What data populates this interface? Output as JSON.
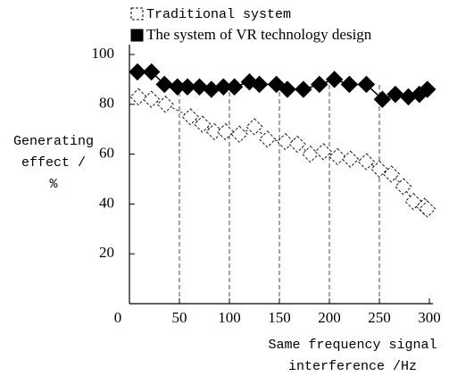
{
  "chart_data": {
    "type": "line",
    "legend": "top",
    "ylabel": [
      "Generating",
      "effect /",
      "%"
    ],
    "xlabel": [
      "Same frequency signal",
      "interference /Hz"
    ],
    "xlim": [
      0,
      300
    ],
    "xticks": [
      0,
      50,
      100,
      150,
      200,
      250,
      300
    ],
    "ylim": [
      0,
      100
    ],
    "yticks": [
      20,
      40,
      60,
      80,
      100
    ],
    "grid": true,
    "series": [
      {
        "name": "Traditional system",
        "color": "#000000",
        "marker": "hollow",
        "x": [
          9,
          22,
          36,
          61,
          73,
          85,
          96,
          110,
          125,
          138,
          156,
          168,
          181,
          194,
          208,
          221,
          237,
          250,
          262,
          274,
          284,
          295,
          298
        ],
        "values": [
          83,
          82,
          80,
          75,
          72,
          69,
          69,
          68,
          71,
          66,
          65,
          64,
          60,
          61,
          59,
          58,
          57,
          54,
          52,
          47,
          41,
          39,
          38
        ]
      },
      {
        "name": "The system of VR technology design",
        "color": "#000000",
        "marker": "filled",
        "x": [
          8,
          22,
          35,
          48,
          58,
          70,
          82,
          94,
          105,
          120,
          130,
          147,
          158,
          174,
          190,
          205,
          220,
          237,
          253,
          266,
          279,
          290,
          298
        ],
        "values": [
          93,
          93,
          88,
          87,
          87,
          87,
          86,
          87,
          87,
          89,
          88,
          88,
          86,
          86,
          88,
          90,
          88,
          88,
          82,
          84,
          83,
          84,
          86
        ]
      }
    ]
  }
}
